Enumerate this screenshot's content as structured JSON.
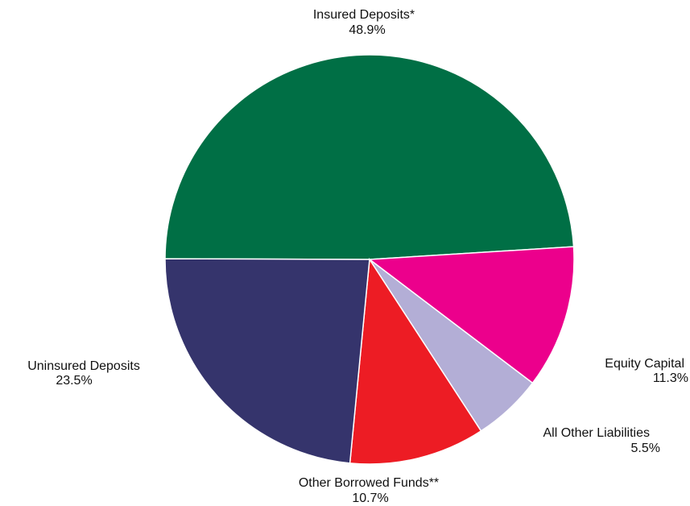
{
  "chart_data": {
    "type": "pie",
    "title": "",
    "slices": [
      {
        "name": "Insured Deposits*",
        "value": 48.9,
        "display": "48.9%",
        "color": "#006f45"
      },
      {
        "name": "Equity Capital",
        "value": 11.3,
        "display": "11.3%",
        "color": "#ec008c"
      },
      {
        "name": "All Other Liabilities",
        "value": 5.5,
        "display": "5.5%",
        "color": "#b3aed6"
      },
      {
        "name": "Other Borrowed Funds**",
        "value": 10.7,
        "display": "10.7%",
        "color": "#ed1c24"
      },
      {
        "name": "Uninsured Deposits",
        "value": 23.5,
        "display": "23.5%",
        "color": "#35346c"
      }
    ]
  }
}
